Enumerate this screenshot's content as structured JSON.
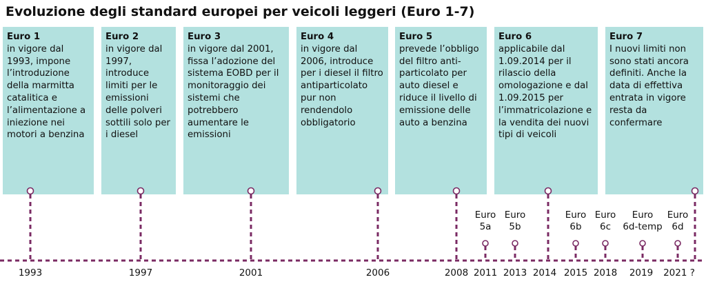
{
  "title": "Evoluzione degli standard europei per veicoli leggeri (Euro 1-7)",
  "standards": [
    {
      "name": "Euro 1",
      "desc": "in vigore dal 1993, impone l’introduzione della marmitta catalitica e l’alimentazione a iniezione nei motori a benzina"
    },
    {
      "name": "Euro 2",
      "desc": "in vigore dal 1997, introduce limiti per le emissioni delle polveri sottili solo per i diesel"
    },
    {
      "name": "Euro 3",
      "desc": "in vigore dal 2001, fissa l’adozione del sistema EOBD per il monitoraggio dei sistemi che potrebbero aumentare le emissioni"
    },
    {
      "name": "Euro 4",
      "desc": "in vigore dal 2006, introduce per i diesel il filtro antiparticolato pur non rendendolo obbligatorio"
    },
    {
      "name": "Euro 5",
      "desc": "prevede l’obbligo del filtro anti-particolato per auto diesel e riduce il livello di emissione delle auto a benzina"
    },
    {
      "name": "Euro 6",
      "desc": "applicabile dal 1.09.2014 per il rilascio della omologazione e dal 1.09.2015 per l’immatricolazione e la vendita dei nuovi tipi di veicoli"
    },
    {
      "name": "Euro 7",
      "desc": "I nuovi limiti non sono stati ancora definiti. Anche la data di effettiva entrata in vigore resta da confermare"
    }
  ],
  "sub_standards": [
    {
      "line1": "Euro",
      "line2": "5a"
    },
    {
      "line1": "Euro",
      "line2": "5b"
    },
    {
      "line1": "Euro",
      "line2": "6b"
    },
    {
      "line1": "Euro",
      "line2": "6c"
    },
    {
      "line1": "Euro",
      "line2": "6d-temp"
    },
    {
      "line1": "Euro",
      "line2": "6d"
    }
  ],
  "years": [
    "1993",
    "1997",
    "2001",
    "2006",
    "2008",
    "2011",
    "2013",
    "2014",
    "2015",
    "2018",
    "2019",
    "2021 ?"
  ],
  "colors": {
    "box": "#b3e1df",
    "line": "#7a2a63"
  }
}
